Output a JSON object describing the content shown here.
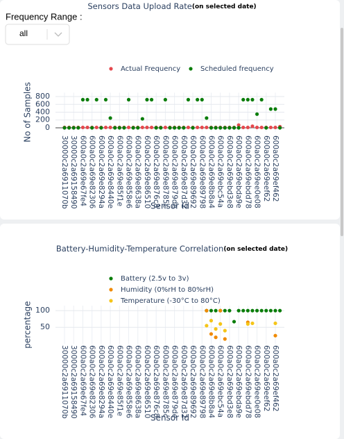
{
  "controls": {
    "label": "Frequency Range :",
    "selected": "all"
  },
  "chart_data": [
    {
      "type": "scatter",
      "title": "Sensors Data Upload Rate",
      "title_note": "(on selected date)",
      "x_label": "Sensor Id",
      "y_label": "No of Samples",
      "legend": "top",
      "legend_orientation": "horizontal",
      "grid": true,
      "ylim": [
        -100,
        900
      ],
      "yticks": [
        0,
        200,
        400,
        600,
        800
      ],
      "categories": [
        "30000c2a6911070b",
        null,
        "30000c2a69158490",
        null,
        "600a0c2a69e67fe4",
        null,
        "600a0c2a69e82306",
        null,
        "600a0c2a69e8294a",
        null,
        "600a0c2a69e8440e",
        null,
        "600a0c2a69e85f1e",
        null,
        "600a0c2a69e858e6",
        null,
        "600a0c2a69e8638a",
        null,
        "600a0c2a69e86510",
        null,
        "600a0c2a69e876c8",
        null,
        "600a0c2a69e8785c",
        null,
        "600a0c2a69e879de",
        null,
        "600a0c2a69e87d32",
        null,
        "600a0c2a69e89692",
        null,
        "600a0c2a69e89798",
        null,
        "600a0c2a69e8b8a4",
        null,
        "600a0c2a69ebc54a",
        null,
        "600a0c2a69ebd3e8",
        null,
        "600a0c2a69ebda9e",
        null,
        "600a0c2a69ebdd78",
        null,
        "600a0c2a69ee0e08",
        null,
        "600a0c2a69eef62",
        null,
        "600a0c2a69ef462",
        null
      ],
      "series": [
        {
          "name": "Actual Frequency",
          "color": "#e5484d",
          "values": [
            10,
            10,
            10,
            10,
            10,
            10,
            10,
            10,
            10,
            10,
            10,
            10,
            10,
            10,
            10,
            10,
            10,
            10,
            10,
            10,
            10,
            10,
            10,
            10,
            10,
            10,
            10,
            10,
            10,
            10,
            10,
            10,
            10,
            10,
            10,
            10,
            10,
            10,
            70,
            10,
            10,
            40,
            10,
            10,
            10,
            10,
            10,
            30
          ]
        },
        {
          "name": "Scheduled frequency",
          "color": "#0a7d0a",
          "values": [
            0,
            0,
            0,
            0,
            720,
            720,
            0,
            720,
            0,
            720,
            250,
            0,
            0,
            0,
            720,
            0,
            0,
            230,
            720,
            720,
            0,
            0,
            720,
            0,
            0,
            0,
            0,
            720,
            0,
            720,
            720,
            250,
            0,
            0,
            0,
            0,
            0,
            0,
            0,
            720,
            720,
            720,
            350,
            720,
            0,
            480,
            480,
            0
          ]
        }
      ]
    },
    {
      "type": "scatter",
      "title": "Battery-Humidity-Temperature Correlation",
      "title_note": "(on selected date)",
      "x_label": "Sensor Id",
      "y_label": "percentage",
      "legend": "top",
      "legend_orientation": "vertical",
      "grid": true,
      "ylim": [
        0,
        115
      ],
      "yticks": [
        50,
        100
      ],
      "categories": [
        "30000c2a6911070b",
        null,
        "30000c2a69158490",
        null,
        "600a0c2a69e67fe4",
        null,
        "600a0c2a69e82306",
        null,
        "600a0c2a69e8294a",
        null,
        "600a0c2a69e8440e",
        null,
        "600a0c2a69e85f1e",
        null,
        "600a0c2a69e858e6",
        null,
        "600a0c2a69e8638a",
        null,
        "600a0c2a69e86510",
        null,
        "600a0c2a69e876c8",
        null,
        "600a0c2a69e8785c",
        null,
        "600a0c2a69e879de",
        null,
        "600a0c2a69e87d32",
        null,
        "600a0c2a69e89692",
        null,
        "600a0c2a69e89798",
        null,
        "600a0c2a69e8b8a4",
        null,
        "600a0c2a69ebc54a",
        null,
        "600a0c2a69ebd3e8",
        null,
        "600a0c2a69ebda9e",
        null,
        "600a0c2a69ebdd78",
        null,
        "600a0c2a69ee0e08",
        null,
        "600a0c2a69eef62",
        null,
        "600a0c2a69ef462",
        null
      ],
      "series": [
        {
          "name": "Battery (2.5v to 3v)",
          "color": "#0a7d0a",
          "values": [
            null,
            null,
            null,
            null,
            null,
            null,
            null,
            null,
            null,
            null,
            null,
            null,
            null,
            null,
            null,
            null,
            null,
            null,
            null,
            null,
            null,
            null,
            null,
            null,
            null,
            null,
            null,
            null,
            null,
            null,
            null,
            100,
            100,
            100,
            100,
            100,
            100,
            67,
            100,
            100,
            100,
            100,
            100,
            100,
            100,
            100,
            100,
            100
          ]
        },
        {
          "name": "Humidity (0%rH to 80%rH)",
          "color": "#f08a00",
          "values": [
            null,
            null,
            null,
            null,
            null,
            null,
            null,
            null,
            null,
            null,
            null,
            null,
            null,
            null,
            null,
            null,
            null,
            null,
            null,
            null,
            null,
            null,
            null,
            null,
            null,
            null,
            null,
            null,
            null,
            null,
            null,
            100,
            30,
            20,
            100,
            15,
            null,
            null,
            null,
            null,
            65,
            null,
            null,
            null,
            null,
            null,
            25,
            null
          ]
        },
        {
          "name": "Temperature (-30°C to 80°C)",
          "color": "#f5c518",
          "values": [
            null,
            null,
            null,
            null,
            null,
            null,
            null,
            null,
            null,
            null,
            null,
            null,
            null,
            null,
            null,
            null,
            null,
            null,
            null,
            null,
            null,
            null,
            null,
            null,
            null,
            null,
            null,
            null,
            null,
            null,
            null,
            55,
            70,
            45,
            60,
            40,
            null,
            null,
            null,
            null,
            60,
            62,
            null,
            null,
            null,
            null,
            62,
            null
          ]
        }
      ]
    }
  ]
}
